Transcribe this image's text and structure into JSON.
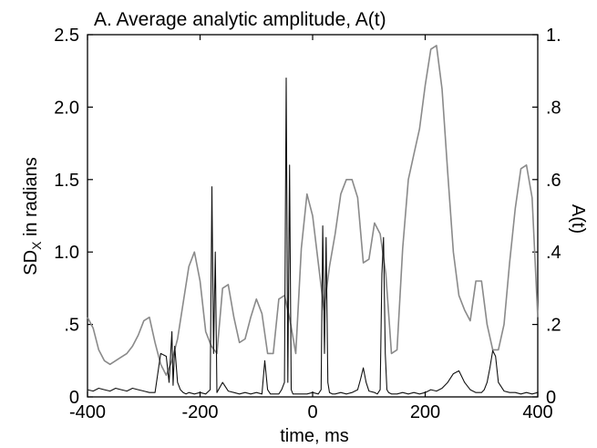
{
  "chart_data": {
    "type": "line",
    "title": "A. Average analytic amplitude, A(t)",
    "xlabel": "time, ms",
    "ylabel_main": "SD",
    "ylabel_sub": "X",
    "ylabel_rest": " in radians",
    "ylabel_right": "A(t)",
    "xlim": [
      -400,
      400
    ],
    "ylim_left": [
      0,
      2.5
    ],
    "ylim_right": [
      0,
      1.0
    ],
    "x_ticks": [
      -400,
      -200,
      0,
      200,
      400
    ],
    "x_tick_labels": [
      "-400",
      "-200",
      "0",
      "200",
      "400"
    ],
    "y_left_ticks": [
      0,
      0.5,
      1.0,
      1.5,
      2.0,
      2.5
    ],
    "y_left_tick_labels": [
      "0",
      ".5",
      "1.0",
      "1.5",
      "2.0",
      "2.5"
    ],
    "y_right_ticks": [
      0,
      0.2,
      0.4,
      0.6,
      0.8,
      1.0
    ],
    "y_right_tick_labels": [
      "0",
      ".2",
      ".4",
      ".6",
      ".8",
      "1."
    ],
    "grid": false,
    "legend": "none",
    "series": [
      {
        "axis": "right",
        "color": "#8a8a8a",
        "x": [
          -400,
          -390,
          -380,
          -370,
          -360,
          -350,
          -340,
          -330,
          -320,
          -310,
          -300,
          -290,
          -280,
          -270,
          -260,
          -250,
          -240,
          -230,
          -220,
          -210,
          -200,
          -190,
          -180,
          -170,
          -160,
          -150,
          -140,
          -130,
          -120,
          -110,
          -100,
          -90,
          -80,
          -70,
          -60,
          -50,
          -40,
          -30,
          -20,
          -10,
          0,
          10,
          20,
          30,
          40,
          50,
          60,
          70,
          80,
          90,
          100,
          110,
          120,
          130,
          140,
          150,
          160,
          170,
          180,
          190,
          200,
          210,
          220,
          230,
          240,
          250,
          260,
          270,
          280,
          290,
          300,
          310,
          320,
          330,
          340,
          350,
          360,
          370,
          380,
          390,
          400
        ],
        "y": [
          0.22,
          0.19,
          0.13,
          0.1,
          0.09,
          0.1,
          0.11,
          0.12,
          0.14,
          0.17,
          0.21,
          0.22,
          0.15,
          0.09,
          0.06,
          0.1,
          0.16,
          0.26,
          0.36,
          0.4,
          0.32,
          0.18,
          0.14,
          0.12,
          0.3,
          0.31,
          0.22,
          0.15,
          0.16,
          0.22,
          0.27,
          0.23,
          0.12,
          0.12,
          0.27,
          0.28,
          0.21,
          0.12,
          0.41,
          0.56,
          0.5,
          0.37,
          0.24,
          0.36,
          0.45,
          0.56,
          0.6,
          0.6,
          0.55,
          0.37,
          0.38,
          0.48,
          0.45,
          0.34,
          0.12,
          0.13,
          0.41,
          0.6,
          0.67,
          0.74,
          0.86,
          0.96,
          0.97,
          0.85,
          0.62,
          0.4,
          0.28,
          0.24,
          0.21,
          0.32,
          0.32,
          0.2,
          0.13,
          0.13,
          0.2,
          0.37,
          0.52,
          0.63,
          0.64,
          0.55,
          0.22
        ]
      },
      {
        "axis": "left",
        "color": "#111111",
        "x": [
          -400,
          -390,
          -380,
          -370,
          -360,
          -350,
          -340,
          -330,
          -320,
          -310,
          -300,
          -290,
          -280,
          -270,
          -260,
          -255,
          -250,
          -248,
          -245,
          -240,
          -235,
          -230,
          -225,
          -220,
          -210,
          -200,
          -190,
          -182,
          -179,
          -176,
          -173,
          -170,
          -160,
          -150,
          -140,
          -130,
          -120,
          -110,
          -100,
          -90,
          -85,
          -80,
          -75,
          -70,
          -65,
          -60,
          -55,
          -50,
          -47,
          -44,
          -41,
          -38,
          -35,
          -30,
          -20,
          -10,
          0,
          10,
          15,
          18,
          21,
          24,
          27,
          30,
          35,
          40,
          50,
          60,
          70,
          80,
          85,
          90,
          95,
          100,
          110,
          115,
          120,
          123,
          126,
          129,
          132,
          135,
          140,
          150,
          160,
          170,
          180,
          190,
          200,
          210,
          220,
          230,
          240,
          250,
          260,
          270,
          280,
          290,
          300,
          305,
          310,
          315,
          320,
          325,
          330,
          340,
          350,
          360,
          370,
          380,
          390,
          400
        ],
        "y": [
          0.05,
          0.04,
          0.06,
          0.05,
          0.04,
          0.06,
          0.05,
          0.04,
          0.06,
          0.05,
          0.04,
          0.03,
          0.03,
          0.3,
          0.28,
          0.1,
          0.45,
          0.08,
          0.35,
          0.1,
          0.05,
          0.03,
          0.02,
          0.03,
          0.02,
          0.03,
          0.02,
          0.05,
          1.45,
          0.3,
          1.0,
          0.03,
          0.1,
          0.04,
          0.03,
          0.02,
          0.03,
          0.02,
          0.03,
          0.02,
          0.25,
          0.05,
          0.02,
          0.02,
          0.02,
          0.02,
          0.05,
          0.1,
          2.2,
          0.1,
          1.6,
          0.05,
          0.02,
          0.02,
          0.02,
          0.02,
          0.03,
          0.02,
          0.05,
          1.18,
          0.3,
          1.1,
          0.1,
          0.03,
          0.02,
          0.02,
          0.03,
          0.02,
          0.03,
          0.05,
          0.12,
          0.2,
          0.1,
          0.04,
          0.03,
          0.02,
          0.05,
          0.85,
          1.1,
          0.3,
          0.05,
          0.03,
          0.02,
          0.02,
          0.03,
          0.02,
          0.03,
          0.02,
          0.03,
          0.05,
          0.04,
          0.06,
          0.1,
          0.16,
          0.18,
          0.1,
          0.05,
          0.03,
          0.03,
          0.05,
          0.1,
          0.2,
          0.32,
          0.28,
          0.1,
          0.04,
          0.03,
          0.03,
          0.02,
          0.03,
          0.02,
          0.03
        ]
      }
    ]
  }
}
